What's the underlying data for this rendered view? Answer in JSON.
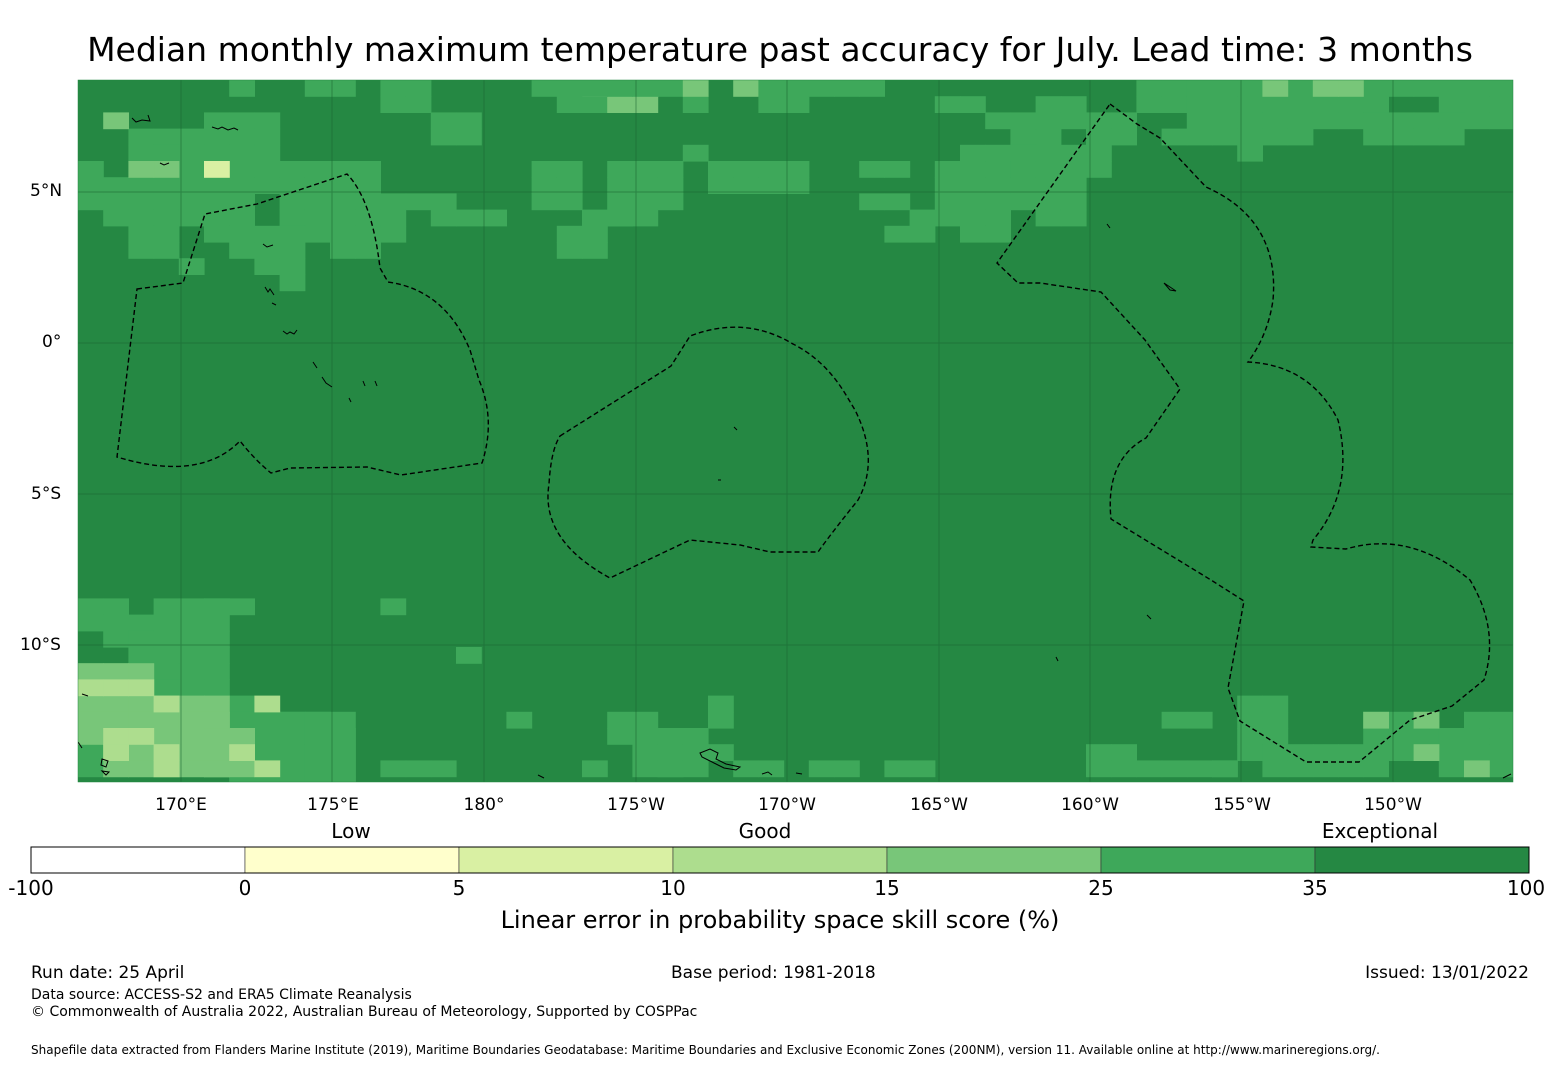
{
  "title": "Median monthly maximum temperature past accuracy for July. Lead time: 3 months",
  "map": {
    "lat_labels": [
      "5°N",
      "0°",
      "5°S",
      "10°S"
    ],
    "lon_labels": [
      "170°E",
      "175°E",
      "180°",
      "175°W",
      "170°W",
      "165°W",
      "160°W",
      "155°W",
      "150°W"
    ],
    "base_color": "#258843",
    "category_colors": {
      "35-100": "#258843",
      "25-35": "#3ea85a",
      "15-25": "#78c679",
      "10-15": "#addd8e",
      "5-10": "#d9f0a3",
      "0-5": "#ffffcc"
    }
  },
  "colorbar": {
    "category_labels": [
      "Low",
      "Good",
      "Exceptional"
    ],
    "boundaries": [
      "-100",
      "0",
      "5",
      "10",
      "15",
      "25",
      "35",
      "100"
    ],
    "colors": [
      "#ffffff",
      "#ffffcc",
      "#d9f0a3",
      "#addd8e",
      "#78c679",
      "#3ea85a",
      "#258843"
    ],
    "label": "Linear error in probability space skill score (%)"
  },
  "footer": {
    "run_date": "Run date: 25 April",
    "base_period": "Base period: 1981-2018",
    "issued": "Issued: 13/01/2022",
    "data_source": "Data source: ACCESS-S2 and ERA5 Climate Reanalysis",
    "copyright": "© Commonwealth of Australia 2022, Australian Bureau of Meteorology, Supported by COSPPac",
    "shapefile": "Shapefile data extracted from Flanders Marine Institute (2019), Maritime Boundaries Geodatabase: Maritime Boundaries and Exclusive Economic Zones (200NM), version 11. Available online at http://www.marineregions.org/."
  }
}
